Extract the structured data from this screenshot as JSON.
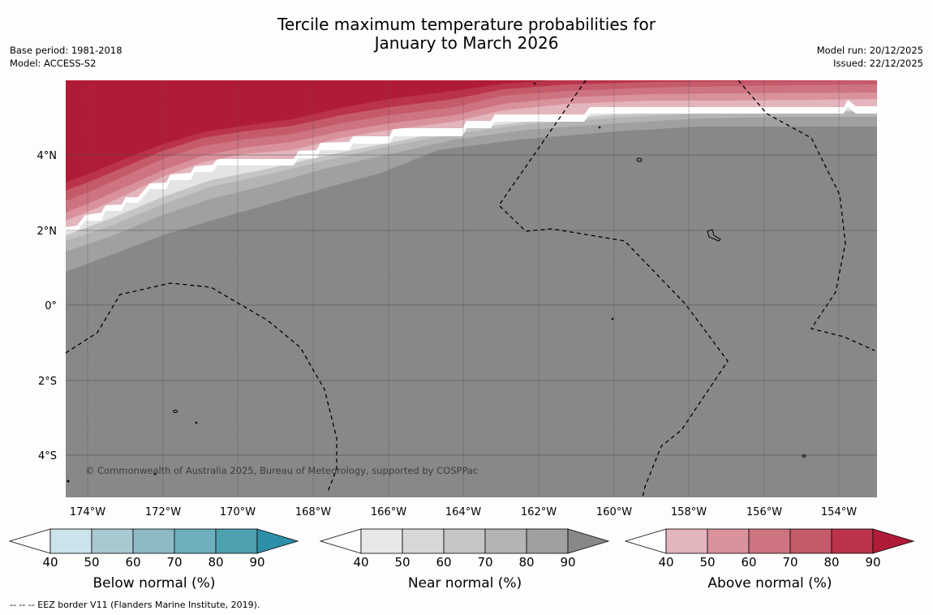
{
  "title": {
    "line1": "Tercile maximum temperature probabilities for",
    "line2": "January to March 2026"
  },
  "meta": {
    "base_period": "Base period: 1981-2018",
    "model": "Model: ACCESS-S2",
    "model_run": "Model run: 20/12/2025",
    "issued": "Issued: 22/12/2025"
  },
  "map": {
    "lat_labels": [
      "4°N",
      "2°N",
      "0°",
      "2°S",
      "4°S"
    ],
    "lon_labels": [
      "174°W",
      "172°W",
      "170°W",
      "168°W",
      "166°W",
      "164°W",
      "162°W",
      "160°W",
      "158°W",
      "156°W",
      "154°W"
    ],
    "copyright": "© Commonwealth of Australia 2025, Bureau of Meteorology, supported by COSPPac",
    "colors": {
      "background_near_normal_max": "#888888",
      "gridline": "#4a4a4a"
    }
  },
  "colorbars": [
    {
      "label": "Below normal (%)",
      "ticks": [
        "40",
        "50",
        "60",
        "70",
        "80",
        "90"
      ],
      "colors": [
        "#ffffff",
        "#cbe3ea",
        "#a9c9d0",
        "#8db9c5",
        "#6dafbd",
        "#4ca0b0",
        "#2e90a8"
      ]
    },
    {
      "label": "Near normal (%)",
      "ticks": [
        "40",
        "50",
        "60",
        "70",
        "80",
        "90"
      ],
      "colors": [
        "#ffffff",
        "#e7e7e7",
        "#d7d7d7",
        "#c5c5c5",
        "#b4b4b4",
        "#a0a0a0",
        "#888888"
      ]
    },
    {
      "label": "Above normal (%)",
      "ticks": [
        "40",
        "50",
        "60",
        "70",
        "80",
        "90"
      ],
      "colors": [
        "#ffffff",
        "#e3b5bc",
        "#d9929c",
        "#cd7480",
        "#c55a6a",
        "#bb334b",
        "#b01c38"
      ]
    }
  ],
  "footer": "--  --  -- EEZ border V11 (Flanders Marine Institute, 2019)."
}
